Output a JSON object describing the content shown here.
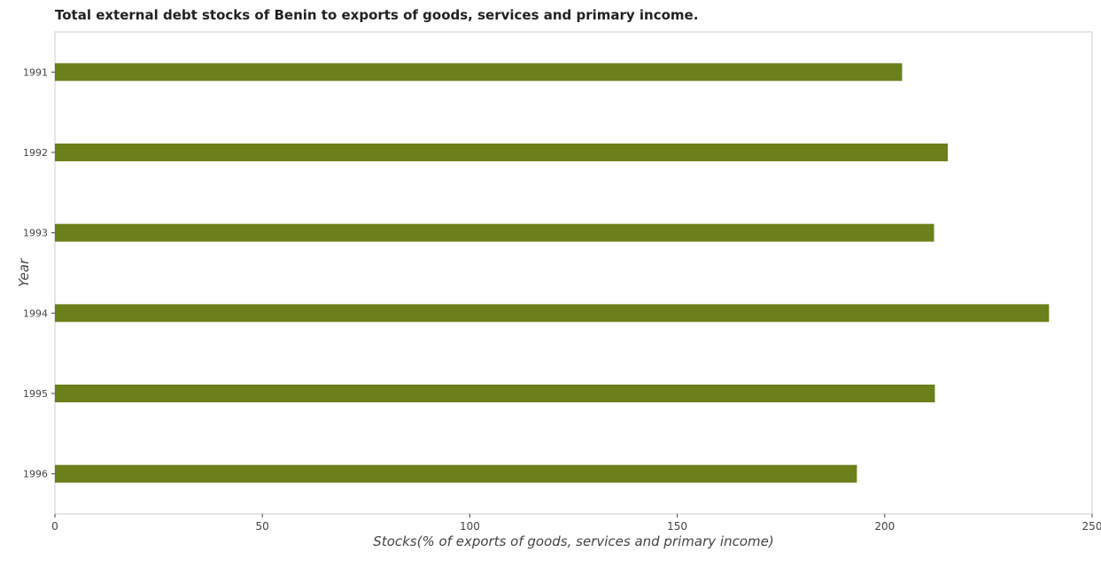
{
  "chart_data": {
    "type": "bar",
    "orientation": "horizontal",
    "title": "Total external debt stocks of Benin to exports of goods, services and primary income.",
    "xlabel": "Stocks(% of exports of goods, services and primary income)",
    "ylabel": "Year",
    "categories": [
      "1991",
      "1992",
      "1993",
      "1994",
      "1995",
      "1996"
    ],
    "values": [
      204.2,
      215.2,
      211.9,
      239.6,
      212.1,
      193.3
    ],
    "xlim": [
      0,
      250
    ],
    "xticks": [
      "0",
      "50",
      "100",
      "150",
      "200",
      "250"
    ],
    "bar_color": "#6b7f1a",
    "grid": false
  }
}
